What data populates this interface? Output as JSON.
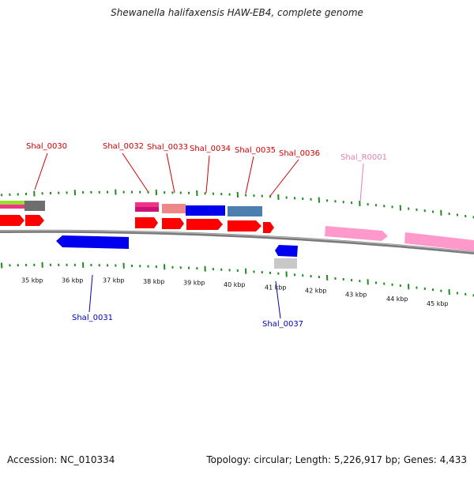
{
  "title": "Shewanella halifaxensis HAW-EB4, complete genome",
  "footer": {
    "accession": "Accession: NC_010334",
    "topology": "Topology: circular; Length: 5,226,917 bp; Genes: 4,433"
  },
  "colors": {
    "backbone": "#808080",
    "tick": "#1e8c1e",
    "forward_label": "#cc0000",
    "reverse_label": "#0000bb",
    "rrna_label": "#e080b0",
    "cds_fwd": "#ff0000",
    "cds_rev": "#0000ff",
    "rrna": "#ff99cc"
  },
  "scale_labels": [
    "35 kbp",
    "36 kbp",
    "37 kbp",
    "38 kbp",
    "39 kbp",
    "40 kbp",
    "41 kbp",
    "42 kbp",
    "43 kbp",
    "44 kbp",
    "45 kbp"
  ],
  "gene_labels": {
    "forward": [
      "Shal_0030",
      "Shal_0032",
      "Shal_0033",
      "Shal_0034",
      "Shal_0035",
      "Shal_0036"
    ],
    "rrna": [
      "Shal_R0001"
    ],
    "reverse": [
      "Shal_0031",
      "Shal_0037"
    ]
  }
}
